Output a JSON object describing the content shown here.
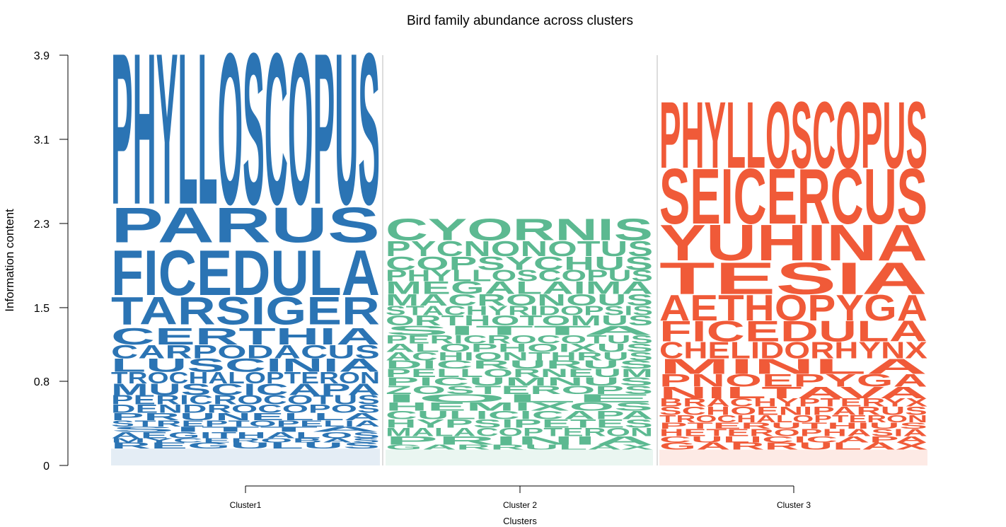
{
  "chart_data": {
    "type": "sequence-logo",
    "title": "Bird family abundance across clusters",
    "xlabel": "Clusters",
    "ylabel": "Information content",
    "yticks": [
      "0",
      "0.8",
      "1.5",
      "2.3",
      "3.1",
      "3.9"
    ],
    "ylim": [
      0,
      3.9
    ],
    "columns": [
      {
        "name": "Cluster1",
        "color": "#2b74b4",
        "words": [
          {
            "label": "PHYLLOSCOPUS",
            "from": 2.49,
            "to": 3.97
          },
          {
            "label": "PARUS",
            "from": 2.12,
            "to": 2.46
          },
          {
            "label": "FICEDULA",
            "from": 1.62,
            "to": 2.06
          },
          {
            "label": "TARSIGER",
            "from": 1.34,
            "to": 1.61
          },
          {
            "label": "CERTHIA",
            "from": 1.15,
            "to": 1.31
          },
          {
            "label": "CARPODACUS",
            "from": 1.02,
            "to": 1.15
          },
          {
            "label": "LUSCINIA",
            "from": 0.89,
            "to": 1.02
          },
          {
            "label": "TROCHALOPTERON",
            "from": 0.78,
            "to": 0.89
          },
          {
            "label": "MUSCICAPA",
            "from": 0.67,
            "to": 0.78
          },
          {
            "label": "PERICROCOTUS",
            "from": 0.58,
            "to": 0.67
          },
          {
            "label": "DENDROCOPOS",
            "from": 0.5,
            "to": 0.58
          },
          {
            "label": "PRUNELLA",
            "from": 0.43,
            "to": 0.5
          },
          {
            "label": "STREPTOPELIA",
            "from": 0.37,
            "to": 0.43
          },
          {
            "label": "SITTA",
            "from": 0.32,
            "to": 0.37
          },
          {
            "label": "AEGITHALOS",
            "from": 0.26,
            "to": 0.32
          },
          {
            "label": "MYCEROBAS",
            "from": 0.22,
            "to": 0.26
          },
          {
            "label": "REGULUS",
            "from": 0.16,
            "to": 0.22
          }
        ]
      },
      {
        "name": "Cluster 2",
        "color": "#5cb991",
        "words": [
          {
            "label": "CYORNIS",
            "from": 2.14,
            "to": 2.35
          },
          {
            "label": "PYCNONOTUS",
            "from": 1.99,
            "to": 2.14
          },
          {
            "label": "COPSYCHUS",
            "from": 1.86,
            "to": 1.99
          },
          {
            "label": "PHYLLOSCOPUS",
            "from": 1.75,
            "to": 1.86
          },
          {
            "label": "MEGALAIMA",
            "from": 1.63,
            "to": 1.75
          },
          {
            "label": "MACRONOUS",
            "from": 1.52,
            "to": 1.63
          },
          {
            "label": "STACHYRIDOPSIS",
            "from": 1.43,
            "to": 1.52
          },
          {
            "label": "ORTHOTOMUS",
            "from": 1.33,
            "to": 1.43
          },
          {
            "label": "SITTA",
            "from": 1.24,
            "to": 1.33
          },
          {
            "label": "PERICROCOTUS",
            "from": 1.16,
            "to": 1.24
          },
          {
            "label": "ALOPHOIXUS",
            "from": 1.08,
            "to": 1.16
          },
          {
            "label": "ACHIONTHRUS",
            "from": 1.0,
            "to": 1.08
          },
          {
            "label": "DICRURUS",
            "from": 0.92,
            "to": 1.0
          },
          {
            "label": "PELLORNEUM",
            "from": 0.84,
            "to": 0.92
          },
          {
            "label": "PICUMNUS",
            "from": 0.76,
            "to": 0.84
          },
          {
            "label": "ZOSTEROPS",
            "from": 0.68,
            "to": 0.76
          },
          {
            "label": "IOLE",
            "from": 0.6,
            "to": 0.68
          },
          {
            "label": "HEMIXOS",
            "from": 0.52,
            "to": 0.6
          },
          {
            "label": "CULICICAPA",
            "from": 0.44,
            "to": 0.52
          },
          {
            "label": "HYPSIPETES",
            "from": 0.36,
            "to": 0.44
          },
          {
            "label": "MALACOPTERON",
            "from": 0.28,
            "to": 0.36
          },
          {
            "label": "PRINIA",
            "from": 0.2,
            "to": 0.28
          },
          {
            "label": "GARRULAX",
            "from": 0.15,
            "to": 0.2
          }
        ]
      },
      {
        "name": "Cluster 3",
        "color": "#f05a38",
        "words": [
          {
            "label": "PHYLLOSCOPUS",
            "from": 2.83,
            "to": 3.48
          },
          {
            "label": "SEICERCUS",
            "from": 2.3,
            "to": 2.84
          },
          {
            "label": "YUHINA",
            "from": 1.95,
            "to": 2.3
          },
          {
            "label": "TESIA",
            "from": 1.63,
            "to": 1.94
          },
          {
            "label": "AETHOPYGA",
            "from": 1.38,
            "to": 1.63
          },
          {
            "label": "FICEDULA",
            "from": 1.18,
            "to": 1.38
          },
          {
            "label": "CHELIDORHYNX",
            "from": 1.02,
            "to": 1.18
          },
          {
            "label": "MINLA",
            "from": 0.87,
            "to": 1.02
          },
          {
            "label": "PNOEPYGA",
            "from": 0.75,
            "to": 0.87
          },
          {
            "label": "NILTAVA",
            "from": 0.64,
            "to": 0.75
          },
          {
            "label": "BRACHYPTERYX",
            "from": 0.56,
            "to": 0.64
          },
          {
            "label": "SCHOENIPARUS",
            "from": 0.48,
            "to": 0.56
          },
          {
            "label": "TROCHALOPTERON",
            "from": 0.41,
            "to": 0.48
          },
          {
            "label": "PTERUTHIUS",
            "from": 0.35,
            "to": 0.41
          },
          {
            "label": "HETEROPHASIA",
            "from": 0.28,
            "to": 0.35
          },
          {
            "label": "CULICICAPA",
            "from": 0.22,
            "to": 0.28
          },
          {
            "label": "GARRULAX",
            "from": 0.15,
            "to": 0.22
          }
        ]
      }
    ]
  }
}
